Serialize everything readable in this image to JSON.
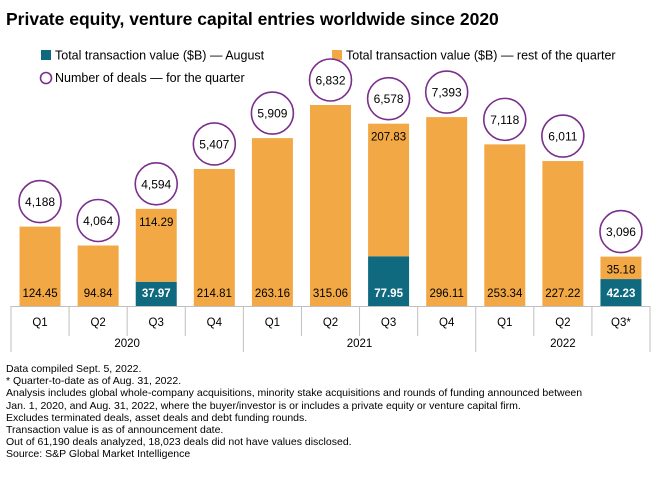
{
  "chart_data": {
    "type": "bar",
    "stacked": true,
    "title": "Private equity, venture capital entries worldwide since 2020",
    "legend": [
      {
        "label": "Total transaction value ($B) — August",
        "color": "#0f6a80",
        "marker": "square"
      },
      {
        "label": "Total transaction value ($B) — rest of the quarter",
        "color": "#f2a945",
        "marker": "square"
      },
      {
        "label": "Number of deals — for the quarter",
        "color": "#7a2f8c",
        "marker": "circle"
      }
    ],
    "categories": [
      "Q1",
      "Q2",
      "Q3",
      "Q4",
      "Q1",
      "Q2",
      "Q3",
      "Q4",
      "Q1",
      "Q2",
      "Q3*"
    ],
    "years": [
      {
        "label": "2020",
        "quarters": 4
      },
      {
        "label": "2021",
        "quarters": 4
      },
      {
        "label": "2022",
        "quarters": 3
      }
    ],
    "series": [
      {
        "name": "Total transaction value ($B) — August",
        "values": [
          null,
          null,
          37.97,
          null,
          null,
          null,
          77.95,
          null,
          null,
          null,
          42.23
        ],
        "labels": [
          null,
          null,
          "37.97",
          null,
          null,
          null,
          "77.95",
          null,
          null,
          null,
          "42.23"
        ]
      },
      {
        "name": "Total transaction value ($B) — rest of the quarter",
        "values": [
          124.45,
          94.84,
          114.29,
          214.81,
          263.16,
          315.06,
          207.83,
          296.11,
          253.34,
          227.22,
          35.18
        ],
        "labels": [
          "124.45",
          "94.84",
          "114.29",
          "214.81",
          "263.16",
          "315.06",
          "207.83",
          "296.11",
          "253.34",
          "227.22",
          "35.18"
        ]
      }
    ],
    "deals": [
      4188,
      4064,
      4594,
      5407,
      5909,
      6832,
      6578,
      7393,
      7118,
      6011,
      3096
    ],
    "deal_labels": [
      "4,188",
      "4,064",
      "4,594",
      "5,407",
      "5,909",
      "6,832",
      "6,578",
      "7,393",
      "7,118",
      "6,011",
      "3,096"
    ],
    "ylim": [
      0,
      320
    ],
    "xlabel": "",
    "ylabel": ""
  },
  "notes": [
    "Data compiled Sept. 5, 2022.",
    "* Quarter-to-date as of Aug. 31, 2022.",
    "Analysis includes global whole-company acquisitions, minority stake acquisitions and rounds of funding announced between",
    "Jan. 1, 2020, and Aug. 31, 2022, where the buyer/investor is or includes a private equity or venture capital firm.",
    "Excludes terminated deals, asset deals and debt funding rounds.",
    "Transaction value is as of announcement date.",
    "Out of 61,190 deals analyzed, 18,023 deals did not have values disclosed.",
    "Source: S&P Global Market Intelligence"
  ]
}
